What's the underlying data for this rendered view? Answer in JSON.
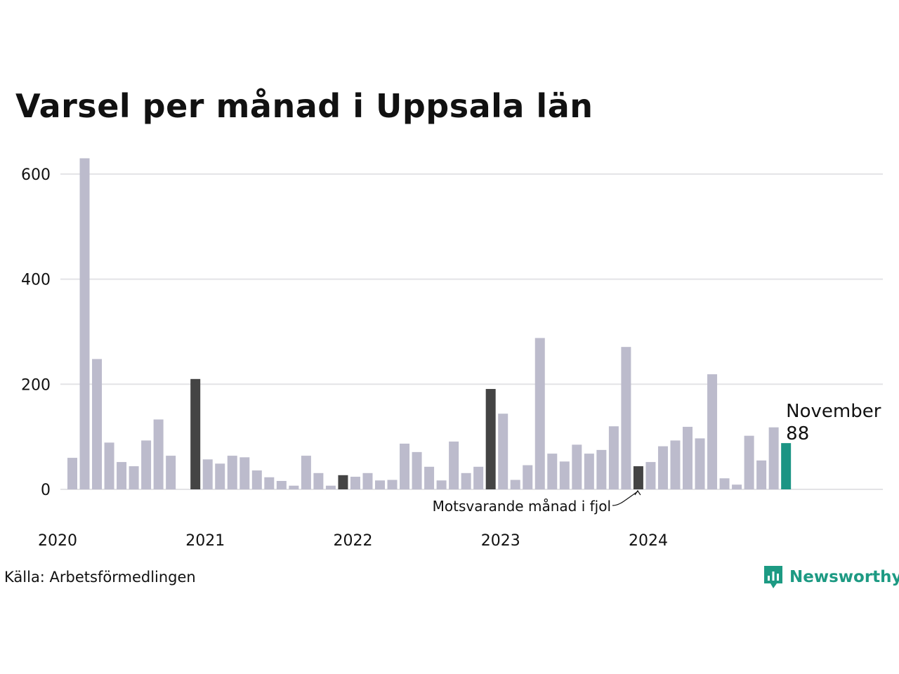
{
  "title": "Varsel per månad i Uppsala län",
  "source": "Källa: Arbetsförmedlingen",
  "brand": {
    "name": "Newsworthy",
    "icon": "newsworthy-logo-icon",
    "color": "#1d9a83"
  },
  "chart_data": {
    "type": "bar",
    "ylim": [
      0,
      640
    ],
    "yticks": [
      0,
      200,
      400,
      600
    ],
    "grid": true,
    "x_start": "2020-01",
    "year_labels": [
      "2020",
      "2021",
      "2022",
      "2023",
      "2024"
    ],
    "colors": {
      "default": "#bcbbcc",
      "same_month": "#444444",
      "current": "#1b9484",
      "grid": "#e3e3e6"
    },
    "highlight_same_month": [
      10,
      22,
      34,
      46
    ],
    "current_index": 58,
    "values": [
      60,
      630,
      248,
      89,
      52,
      44,
      93,
      133,
      64,
      0,
      210,
      57,
      49,
      64,
      61,
      36,
      23,
      16,
      7,
      64,
      31,
      7,
      27,
      24,
      31,
      17,
      18,
      87,
      71,
      43,
      17,
      91,
      31,
      43,
      191,
      144,
      18,
      46,
      288,
      68,
      53,
      85,
      68,
      75,
      120,
      271,
      44,
      52,
      82,
      93,
      119,
      97,
      219,
      21,
      9,
      102,
      55,
      118,
      88
    ],
    "annotations": {
      "current_month": "November",
      "current_value": "88",
      "same_month_label": "Motsvarande månad i fjol"
    }
  }
}
